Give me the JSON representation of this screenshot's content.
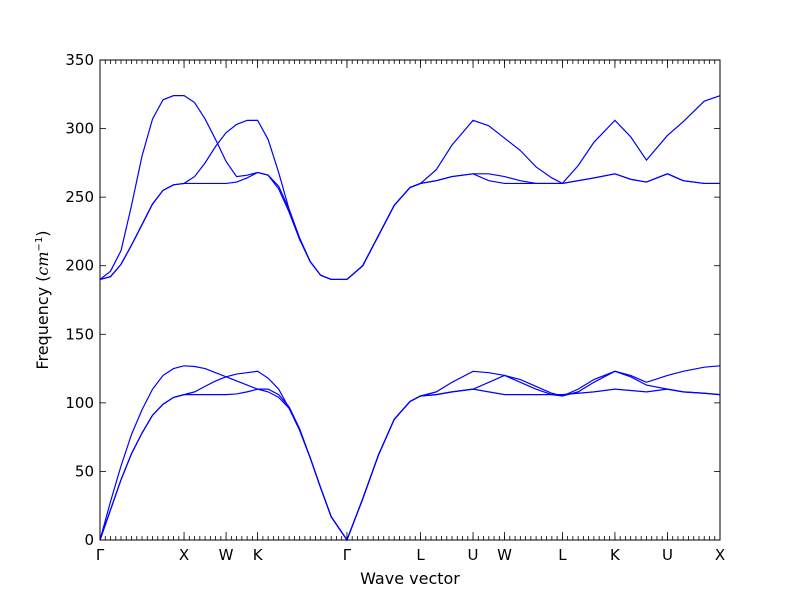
{
  "chart_data": {
    "type": "line",
    "title": "",
    "xlabel": "Wave vector",
    "ylabel": "Frequency (cm⁻¹)",
    "ylabel_parts": [
      "Frequency (",
      "cm",
      "−1",
      ")"
    ],
    "ylim": [
      0,
      350
    ],
    "yticks": [
      0,
      50,
      100,
      150,
      200,
      250,
      300,
      350
    ],
    "xlim": [
      0,
      11.8
    ],
    "high_symmetry_points": [
      {
        "label": "Γ",
        "x": 0
      },
      {
        "label": "X",
        "x": 1.6
      },
      {
        "label": "W",
        "x": 2.4
      },
      {
        "label": "K",
        "x": 3.0
      },
      {
        "label": "Γ",
        "x": 4.7
      },
      {
        "label": "L",
        "x": 6.1
      },
      {
        "label": "U",
        "x": 7.1
      },
      {
        "label": "W",
        "x": 7.7
      },
      {
        "label": "L",
        "x": 8.8
      },
      {
        "label": "K",
        "x": 9.8
      },
      {
        "label": "U",
        "x": 10.8
      },
      {
        "label": "X",
        "x": 11.8
      }
    ],
    "grid": false,
    "legend": "none",
    "line_color": "#0000ff",
    "series": [
      {
        "x": [
          0,
          0.2,
          0.4,
          0.6,
          0.8,
          1.0,
          1.2,
          1.4,
          1.6,
          1.8,
          2.0,
          2.2,
          2.4,
          2.6,
          2.8,
          3.0,
          3.2,
          3.4,
          3.6,
          3.8,
          4.0,
          4.2,
          4.4,
          4.7,
          5.0,
          5.3,
          5.6,
          5.9,
          6.1,
          6.4,
          6.7,
          7.1,
          7.4,
          7.7,
          8.0,
          8.3,
          8.6,
          8.8,
          9.1,
          9.4,
          9.8,
          10.1,
          10.4,
          10.8,
          11.1,
          11.5,
          11.8
        ],
        "y": [
          0,
          28,
          54,
          77,
          95,
          110,
          120,
          125,
          127,
          126.5,
          125,
          122,
          119,
          116,
          113,
          110,
          108,
          104,
          96,
          80,
          60,
          38,
          17,
          0,
          30,
          62,
          88,
          101,
          105,
          106,
          108,
          110,
          108,
          106,
          106,
          106,
          106,
          106,
          107,
          108,
          110,
          109,
          108,
          110,
          108,
          107,
          106
        ]
      },
      {
        "x": [
          0,
          0.2,
          0.4,
          0.6,
          0.8,
          1.0,
          1.2,
          1.4,
          1.6,
          1.8,
          2.0,
          2.2,
          2.4,
          2.6,
          2.8,
          3.0,
          3.2,
          3.4,
          3.6,
          3.8,
          4.0,
          4.2,
          4.4,
          4.7,
          5.0,
          5.3,
          5.6,
          5.9,
          6.1,
          6.4,
          6.7,
          7.1,
          7.4,
          7.7,
          8.0,
          8.3,
          8.6,
          8.8,
          9.1,
          9.4,
          9.8,
          10.1,
          10.4,
          10.8,
          11.1,
          11.5,
          11.8
        ],
        "y": [
          0,
          22,
          44,
          63,
          78,
          91,
          99,
          104,
          106,
          106,
          106,
          106,
          106,
          106.5,
          108,
          110,
          110,
          106,
          97,
          81,
          60,
          38,
          17,
          0,
          30,
          62,
          88,
          101,
          105,
          106,
          108,
          110,
          115,
          120,
          117,
          112,
          107,
          105,
          108,
          115,
          123,
          119,
          113,
          110,
          108,
          107,
          106
        ]
      },
      {
        "x": [
          0,
          0.2,
          0.4,
          0.6,
          0.8,
          1.0,
          1.2,
          1.4,
          1.6,
          1.8,
          2.0,
          2.2,
          2.4,
          2.6,
          2.8,
          3.0,
          3.2,
          3.4,
          3.6,
          3.8,
          4.0,
          4.2,
          4.4,
          4.7,
          5.0,
          5.3,
          5.6,
          5.9,
          6.1,
          6.4,
          6.7,
          7.1,
          7.4,
          7.7,
          8.0,
          8.3,
          8.6,
          8.8,
          9.1,
          9.4,
          9.8,
          10.1,
          10.4,
          10.8,
          11.1,
          11.5,
          11.8
        ],
        "y": [
          0,
          22,
          44,
          63,
          78,
          91,
          99,
          104,
          106,
          108,
          112,
          116,
          119,
          121,
          122,
          123,
          118,
          110,
          96,
          80,
          60,
          38,
          17,
          0,
          30,
          62,
          88,
          101,
          105,
          108,
          115,
          123,
          122,
          120,
          115,
          110,
          106,
          105,
          110,
          117,
          123,
          120,
          115,
          120,
          123,
          126,
          127
        ]
      },
      {
        "x": [
          0,
          0.2,
          0.4,
          0.6,
          0.8,
          1.0,
          1.2,
          1.4,
          1.6,
          1.8,
          2.0,
          2.2,
          2.4,
          2.6,
          2.8,
          3.0,
          3.2,
          3.4,
          3.6,
          3.8,
          4.0,
          4.2,
          4.4,
          4.7,
          5.0,
          5.3,
          5.6,
          5.9,
          6.1,
          6.4,
          6.7,
          7.1,
          7.4,
          7.7,
          8.0,
          8.3,
          8.6,
          8.8,
          9.1,
          9.4,
          9.8,
          10.1,
          10.4,
          10.8,
          11.1,
          11.5,
          11.8
        ],
        "y": [
          190,
          196,
          211,
          244,
          280,
          307,
          321,
          324,
          324,
          319,
          307,
          292,
          276,
          265,
          266,
          268,
          266,
          258,
          241,
          220,
          203,
          193,
          190,
          190,
          200,
          222,
          244,
          257,
          260,
          262,
          265,
          267,
          267,
          265,
          262,
          260,
          260,
          260,
          262,
          264,
          267,
          263,
          261,
          267,
          262,
          260,
          260
        ]
      },
      {
        "x": [
          0,
          0.2,
          0.4,
          0.6,
          0.8,
          1.0,
          1.2,
          1.4,
          1.6,
          1.8,
          2.0,
          2.2,
          2.4,
          2.6,
          2.8,
          3.0,
          3.2,
          3.4,
          3.6,
          3.8,
          4.0,
          4.2,
          4.4,
          4.7,
          5.0,
          5.3,
          5.6,
          5.9,
          6.1,
          6.4,
          6.7,
          7.1,
          7.4,
          7.7,
          8.0,
          8.3,
          8.6,
          8.8,
          9.1,
          9.4,
          9.8,
          10.1,
          10.4,
          10.8,
          11.1,
          11.5,
          11.8
        ],
        "y": [
          190,
          192,
          201,
          215,
          230,
          245,
          255,
          259,
          260,
          260,
          260,
          260,
          260,
          261,
          264,
          268,
          266,
          256,
          239,
          219,
          203,
          193,
          190,
          190,
          200,
          222,
          244,
          257,
          260,
          262,
          265,
          267,
          262,
          260,
          260,
          260,
          260,
          260,
          262,
          264,
          267,
          263,
          261,
          267,
          262,
          260,
          260
        ]
      },
      {
        "x": [
          0,
          0.2,
          0.4,
          0.6,
          0.8,
          1.0,
          1.2,
          1.4,
          1.6,
          1.8,
          2.0,
          2.2,
          2.4,
          2.6,
          2.8,
          3.0,
          3.2,
          3.4,
          3.6,
          3.8,
          4.0,
          4.2,
          4.4,
          4.7,
          5.0,
          5.3,
          5.6,
          5.9,
          6.1,
          6.4,
          6.7,
          7.1,
          7.4,
          7.7,
          8.0,
          8.3,
          8.6,
          8.8,
          9.1,
          9.4,
          9.8,
          10.1,
          10.4,
          10.8,
          11.1,
          11.5,
          11.8
        ],
        "y": [
          190,
          192,
          201,
          215,
          230,
          245,
          255,
          259,
          260,
          265,
          275,
          287,
          297,
          303,
          306,
          306,
          292,
          268,
          241,
          220,
          203,
          193,
          190,
          190,
          200,
          222,
          244,
          257,
          260,
          270,
          288,
          306,
          302,
          293,
          284,
          272,
          264,
          260,
          273,
          290,
          306,
          294,
          277,
          295,
          305,
          320,
          324
        ]
      }
    ]
  }
}
